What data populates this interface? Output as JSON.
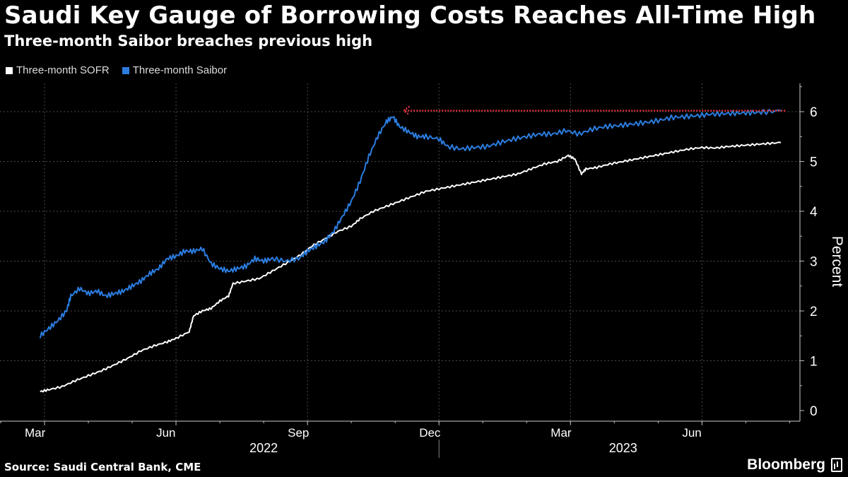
{
  "title": "Saudi Key Gauge of Borrowing Costs Reaches All-Time High",
  "subtitle": "Three-month Saibor breaches previous high",
  "source": "Source: Saudi Central Bank, CME",
  "brand": "Bloomberg",
  "colors": {
    "background": "#000000",
    "sofr": "#ffffff",
    "saibor": "#2b7de0",
    "arrow": "#e0313a",
    "grid": "#555555"
  },
  "chart_data": {
    "type": "line",
    "title": "Saudi Key Gauge of Borrowing Costs Reaches All-Time High",
    "subtitle": "Three-month Saibor breaches previous high",
    "ylabel": "Percent",
    "ylim": [
      0,
      6.6
    ],
    "yticks": [
      0,
      1,
      2,
      3,
      4,
      5,
      6
    ],
    "xlim": [
      0,
      16.8
    ],
    "xticks": [
      {
        "x": 0,
        "label": "Mar"
      },
      {
        "x": 3,
        "label": "Jun"
      },
      {
        "x": 6,
        "label": "Sep"
      },
      {
        "x": 9,
        "label": "Dec"
      },
      {
        "x": 12,
        "label": "Mar"
      },
      {
        "x": 15,
        "label": "Jun"
      }
    ],
    "year_labels": [
      {
        "x": 5.0,
        "label": "2022"
      },
      {
        "x": 13.2,
        "label": "2023"
      }
    ],
    "year_divider_x": 9.0,
    "grid": true,
    "legend": "top-left",
    "annotation": {
      "type": "dotted-arrow",
      "from": [
        16.9,
        6.02
      ],
      "to": [
        8.1,
        6.02
      ],
      "color": "#e0313a"
    },
    "series": [
      {
        "name": "Three-month SOFR",
        "color": "#ffffff",
        "points": [
          [
            -0.1,
            0.38
          ],
          [
            0.1,
            0.42
          ],
          [
            0.4,
            0.48
          ],
          [
            0.7,
            0.6
          ],
          [
            1.0,
            0.7
          ],
          [
            1.3,
            0.8
          ],
          [
            1.6,
            0.92
          ],
          [
            1.9,
            1.05
          ],
          [
            2.2,
            1.2
          ],
          [
            2.5,
            1.3
          ],
          [
            2.8,
            1.38
          ],
          [
            3.0,
            1.45
          ],
          [
            3.3,
            1.58
          ],
          [
            3.4,
            1.9
          ],
          [
            3.6,
            2.0
          ],
          [
            3.8,
            2.05
          ],
          [
            4.0,
            2.2
          ],
          [
            4.2,
            2.3
          ],
          [
            4.3,
            2.55
          ],
          [
            4.6,
            2.6
          ],
          [
            4.9,
            2.65
          ],
          [
            5.2,
            2.8
          ],
          [
            5.5,
            2.95
          ],
          [
            5.8,
            3.1
          ],
          [
            6.1,
            3.3
          ],
          [
            6.4,
            3.45
          ],
          [
            6.7,
            3.6
          ],
          [
            7.0,
            3.7
          ],
          [
            7.2,
            3.85
          ],
          [
            7.5,
            4.0
          ],
          [
            7.8,
            4.1
          ],
          [
            8.1,
            4.2
          ],
          [
            8.4,
            4.3
          ],
          [
            8.7,
            4.4
          ],
          [
            9.0,
            4.45
          ],
          [
            9.3,
            4.5
          ],
          [
            9.6,
            4.55
          ],
          [
            9.9,
            4.6
          ],
          [
            10.2,
            4.65
          ],
          [
            10.5,
            4.7
          ],
          [
            10.8,
            4.75
          ],
          [
            11.1,
            4.85
          ],
          [
            11.4,
            4.95
          ],
          [
            11.7,
            5.0
          ],
          [
            11.95,
            5.12
          ],
          [
            12.1,
            5.05
          ],
          [
            12.25,
            4.75
          ],
          [
            12.35,
            4.85
          ],
          [
            12.6,
            4.88
          ],
          [
            12.9,
            4.95
          ],
          [
            13.2,
            5.0
          ],
          [
            13.5,
            5.05
          ],
          [
            13.8,
            5.1
          ],
          [
            14.1,
            5.15
          ],
          [
            14.4,
            5.2
          ],
          [
            14.7,
            5.25
          ],
          [
            15.0,
            5.28
          ],
          [
            15.3,
            5.27
          ],
          [
            15.6,
            5.3
          ],
          [
            15.9,
            5.32
          ],
          [
            16.2,
            5.34
          ],
          [
            16.5,
            5.36
          ],
          [
            16.8,
            5.38
          ]
        ]
      },
      {
        "name": "Three-month Saibor",
        "color": "#2b7de0",
        "points": [
          [
            -0.1,
            1.5
          ],
          [
            0.1,
            1.65
          ],
          [
            0.3,
            1.8
          ],
          [
            0.5,
            2.0
          ],
          [
            0.6,
            2.3
          ],
          [
            0.8,
            2.45
          ],
          [
            1.0,
            2.35
          ],
          [
            1.2,
            2.4
          ],
          [
            1.4,
            2.3
          ],
          [
            1.6,
            2.35
          ],
          [
            1.8,
            2.4
          ],
          [
            2.0,
            2.5
          ],
          [
            2.2,
            2.6
          ],
          [
            2.4,
            2.75
          ],
          [
            2.6,
            2.85
          ],
          [
            2.8,
            3.05
          ],
          [
            3.0,
            3.1
          ],
          [
            3.2,
            3.2
          ],
          [
            3.4,
            3.2
          ],
          [
            3.6,
            3.25
          ],
          [
            3.8,
            2.95
          ],
          [
            4.0,
            2.85
          ],
          [
            4.2,
            2.8
          ],
          [
            4.4,
            2.85
          ],
          [
            4.6,
            2.9
          ],
          [
            4.8,
            3.05
          ],
          [
            5.0,
            3.0
          ],
          [
            5.2,
            3.05
          ],
          [
            5.5,
            3.0
          ],
          [
            5.8,
            3.05
          ],
          [
            6.0,
            3.2
          ],
          [
            6.2,
            3.3
          ],
          [
            6.4,
            3.4
          ],
          [
            6.6,
            3.6
          ],
          [
            6.8,
            3.9
          ],
          [
            7.0,
            4.2
          ],
          [
            7.2,
            4.6
          ],
          [
            7.4,
            5.1
          ],
          [
            7.6,
            5.5
          ],
          [
            7.8,
            5.8
          ],
          [
            7.95,
            5.9
          ],
          [
            8.1,
            5.7
          ],
          [
            8.3,
            5.6
          ],
          [
            8.5,
            5.5
          ],
          [
            8.7,
            5.5
          ],
          [
            9.0,
            5.45
          ],
          [
            9.2,
            5.3
          ],
          [
            9.5,
            5.25
          ],
          [
            9.8,
            5.28
          ],
          [
            10.1,
            5.3
          ],
          [
            10.4,
            5.38
          ],
          [
            10.7,
            5.45
          ],
          [
            11.0,
            5.5
          ],
          [
            11.3,
            5.55
          ],
          [
            11.6,
            5.55
          ],
          [
            11.9,
            5.62
          ],
          [
            12.2,
            5.55
          ],
          [
            12.5,
            5.65
          ],
          [
            12.8,
            5.7
          ],
          [
            13.1,
            5.72
          ],
          [
            13.4,
            5.75
          ],
          [
            13.7,
            5.78
          ],
          [
            14.0,
            5.82
          ],
          [
            14.3,
            5.88
          ],
          [
            14.6,
            5.9
          ],
          [
            14.9,
            5.92
          ],
          [
            15.2,
            5.95
          ],
          [
            15.5,
            5.96
          ],
          [
            15.8,
            5.97
          ],
          [
            16.1,
            5.98
          ],
          [
            16.4,
            5.99
          ],
          [
            16.8,
            6.02
          ]
        ]
      }
    ]
  }
}
